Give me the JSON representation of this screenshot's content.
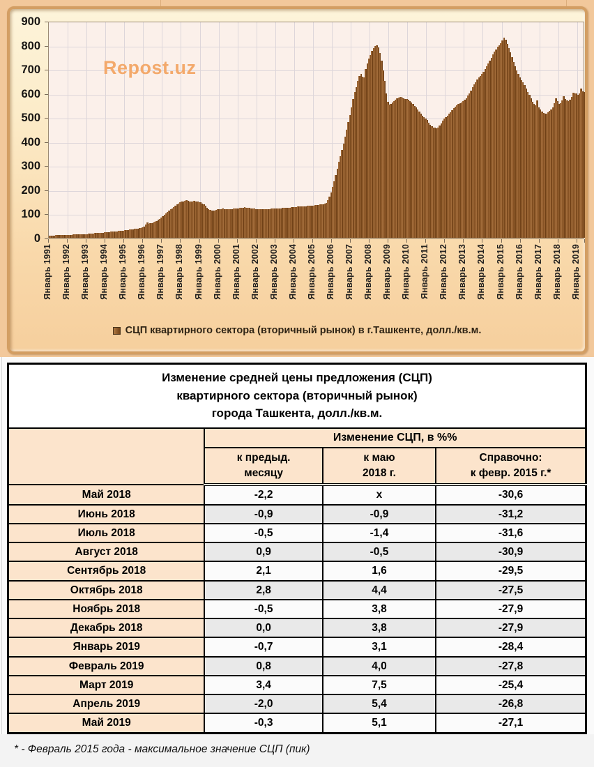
{
  "chart": {
    "watermark": "Repost.uz",
    "legend": "СЦП квартирного  сектора (вторичный рынок) в г.Ташкенте, долл./кв.м."
  },
  "chart_data": {
    "type": "bar",
    "series_name": "СЦП квартирного сектора (вторичный рынок) в г.Ташкенте, долл./кв.м.",
    "frequency": "monthly",
    "start_label": "Январь 1991",
    "end_label": "Май 2019",
    "ylim": [
      0,
      900
    ],
    "y_ticks": [
      900,
      800,
      700,
      600,
      500,
      400,
      300,
      200,
      100,
      0
    ],
    "x_year_labels": [
      "Январь 1991",
      "Январь 1992",
      "Январь 1993",
      "Январь 1994",
      "Январь 1995",
      "Январь 1996",
      "Январь 1997",
      "Январь 1998",
      "Январь 1999",
      "Январь 2000",
      "Январь 2001",
      "Январь 2002",
      "Январь 2003",
      "Январь 2004",
      "Январь 2005",
      "Январь 2006",
      "Январь 2007",
      "Январь 2008",
      "Январь 2009",
      "Январь 2010",
      "Январь 2011",
      "Январь 2012",
      "Январь 2013",
      "Январь 2014",
      "Январь 2015",
      "Январь 2016",
      "Январь 2017",
      "Январь 2018",
      "Январь 2019"
    ],
    "grid": true,
    "legend_position": "bottom",
    "values": [
      10,
      10,
      10,
      10,
      11,
      11,
      11,
      11,
      12,
      12,
      12,
      12,
      13,
      13,
      13,
      14,
      14,
      14,
      14,
      15,
      15,
      15,
      16,
      16,
      16,
      17,
      17,
      18,
      18,
      19,
      19,
      20,
      20,
      21,
      21,
      22,
      23,
      23,
      24,
      25,
      25,
      26,
      27,
      27,
      28,
      29,
      29,
      30,
      31,
      32,
      33,
      34,
      35,
      36,
      37,
      38,
      39,
      40,
      41,
      43,
      45,
      55,
      64,
      58,
      60,
      62,
      64,
      66,
      70,
      74,
      79,
      84,
      90,
      96,
      102,
      108,
      114,
      118,
      122,
      127,
      132,
      138,
      143,
      147,
      150,
      152,
      153,
      155,
      154,
      152,
      150,
      151,
      153,
      152,
      150,
      148,
      147,
      143,
      138,
      132,
      126,
      120,
      116,
      113,
      112,
      114,
      116,
      118,
      119,
      120,
      121,
      120,
      119,
      118,
      118,
      119,
      120,
      121,
      122,
      122,
      123,
      124,
      125,
      126,
      127,
      126,
      125,
      124,
      123,
      122,
      121,
      120,
      120,
      119,
      119,
      118,
      118,
      119,
      119,
      120,
      120,
      121,
      121,
      122,
      122,
      122,
      123,
      123,
      124,
      124,
      125,
      125,
      126,
      126,
      127,
      127,
      128,
      128,
      129,
      129,
      130,
      130,
      131,
      131,
      132,
      132,
      133,
      133,
      134,
      135,
      136,
      137,
      138,
      139,
      140,
      142,
      146,
      155,
      170,
      188,
      210,
      235,
      260,
      288,
      315,
      340,
      365,
      390,
      420,
      450,
      480,
      510,
      540,
      575,
      605,
      625,
      650,
      672,
      680,
      668,
      665,
      700,
      725,
      745,
      758,
      775,
      788,
      795,
      800,
      790,
      768,
      735,
      695,
      652,
      600,
      565,
      552,
      556,
      562,
      568,
      574,
      578,
      582,
      585,
      583,
      580,
      577,
      575,
      572,
      568,
      562,
      555,
      548,
      540,
      532,
      524,
      516,
      508,
      500,
      495,
      488,
      478,
      468,
      462,
      458,
      456,
      455,
      458,
      465,
      475,
      485,
      495,
      502,
      508,
      515,
      522,
      530,
      538,
      545,
      550,
      556,
      560,
      563,
      566,
      572,
      580,
      590,
      600,
      612,
      625,
      636,
      646,
      656,
      665,
      672,
      680,
      690,
      700,
      712,
      724,
      736,
      748,
      760,
      772,
      782,
      792,
      800,
      808,
      820,
      830,
      822,
      805,
      788,
      770,
      750,
      730,
      712,
      695,
      680,
      667,
      655,
      646,
      634,
      620,
      605,
      592,
      578,
      565,
      555,
      550,
      570,
      542,
      533,
      525,
      518,
      515,
      516,
      520,
      526,
      533,
      542,
      560,
      580,
      568,
      556,
      560,
      570,
      589,
      576,
      571,
      568,
      573,
      585,
      602,
      598,
      598,
      594,
      599,
      619,
      607,
      605
    ],
    "colors": {
      "bar": "#8a5526",
      "plot_bg": "#fbf0ea",
      "frame_bg": "#f9dcae",
      "grid": "#ddd6da",
      "watermark": "#f3a96b"
    }
  },
  "table": {
    "title": {
      "t1": "Изменение средней цены предложения (СЦП)",
      "t2": "квартирного сектора (вторичный рынок)",
      "t3": "города Ташкента, долл./кв.м."
    },
    "header": {
      "group": "Изменение СЦП, в %%",
      "c1": {
        "l1": "к предыд.",
        "l2": "месяцу"
      },
      "c2": {
        "l1": "к маю",
        "l2": "2018 г."
      },
      "c3": {
        "l1": "Справочно:",
        "l2": "к февр. 2015 г.*"
      }
    },
    "rows": [
      [
        "Май 2018",
        "-2,2",
        "х",
        "-30,6"
      ],
      [
        "Июнь 2018",
        "-0,9",
        "-0,9",
        "-31,2"
      ],
      [
        "Июль 2018",
        "-0,5",
        "-1,4",
        "-31,6"
      ],
      [
        "Август 2018",
        "0,9",
        "-0,5",
        "-30,9"
      ],
      [
        "Сентябрь 2018",
        "2,1",
        "1,6",
        "-29,5"
      ],
      [
        "Октябрь 2018",
        "2,8",
        "4,4",
        "-27,5"
      ],
      [
        "Ноябрь 2018",
        "-0,5",
        "3,8",
        "-27,9"
      ],
      [
        "Декабрь 2018",
        "0,0",
        "3,8",
        "-27,9"
      ],
      [
        "Январь 2019",
        "-0,7",
        "3,1",
        "-28,4"
      ],
      [
        "Февраль 2019",
        "0,8",
        "4,0",
        "-27,8"
      ],
      [
        "Март 2019",
        "3,4",
        "7,5",
        "-25,4"
      ],
      [
        "Апрель 2019",
        "-2,0",
        "5,4",
        "-26,8"
      ],
      [
        "Май 2019",
        "-0,3",
        "5,1",
        "-27,1"
      ]
    ]
  },
  "footnote": {
    "text": "* - Февраль 2015 года - максимальное значение СЦП (пик)"
  }
}
